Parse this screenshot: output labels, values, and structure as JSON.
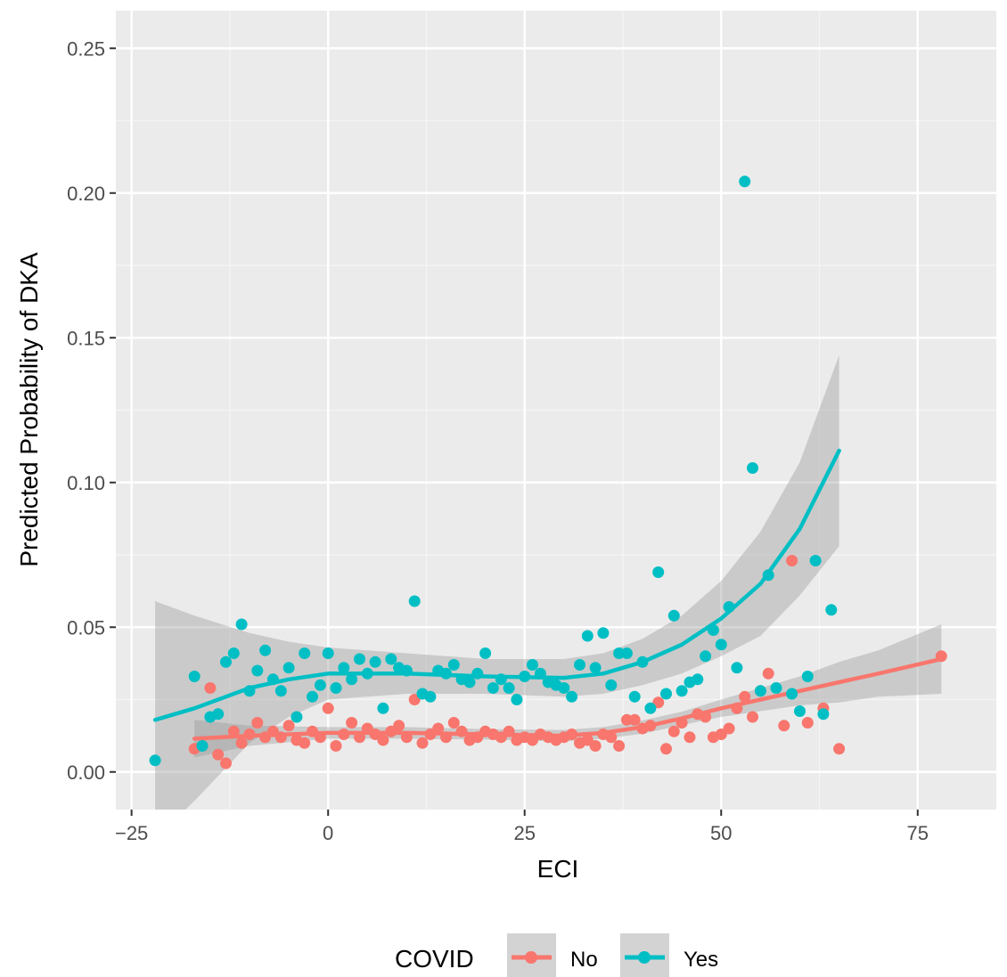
{
  "chart_data": {
    "type": "scatter",
    "title": "",
    "xlabel": "ECI",
    "ylabel": "Predicted Probability of DKA",
    "xlim": [
      -27,
      85
    ],
    "ylim": [
      -0.013,
      0.263
    ],
    "x_ticks": [
      -25,
      0,
      25,
      50,
      75
    ],
    "x_tick_labels": [
      "−25",
      "0",
      "25",
      "50",
      "75"
    ],
    "y_ticks": [
      0.0,
      0.05,
      0.1,
      0.15,
      0.2,
      0.25
    ],
    "y_tick_labels": [
      "0.00",
      "0.05",
      "0.10",
      "0.15",
      "0.20",
      "0.25"
    ],
    "grid": true,
    "legend": {
      "title": "COVID",
      "position": "bottom"
    },
    "series": [
      {
        "name": "No",
        "color": "#F8766D",
        "points": [
          [
            -17,
            0.008
          ],
          [
            -16,
            0.009
          ],
          [
            -15,
            0.029
          ],
          [
            -14,
            0.006
          ],
          [
            -13,
            0.003
          ],
          [
            -12,
            0.014
          ],
          [
            -11,
            0.01
          ],
          [
            -10,
            0.013
          ],
          [
            -9,
            0.017
          ],
          [
            -8,
            0.012
          ],
          [
            -7,
            0.014
          ],
          [
            -6,
            0.012
          ],
          [
            -5,
            0.016
          ],
          [
            -4,
            0.011
          ],
          [
            -3,
            0.01
          ],
          [
            -2,
            0.014
          ],
          [
            -1,
            0.012
          ],
          [
            0,
            0.022
          ],
          [
            1,
            0.009
          ],
          [
            2,
            0.013
          ],
          [
            3,
            0.017
          ],
          [
            4,
            0.012
          ],
          [
            5,
            0.015
          ],
          [
            6,
            0.013
          ],
          [
            7,
            0.011
          ],
          [
            8,
            0.014
          ],
          [
            9,
            0.016
          ],
          [
            10,
            0.012
          ],
          [
            11,
            0.025
          ],
          [
            12,
            0.01
          ],
          [
            13,
            0.013
          ],
          [
            14,
            0.015
          ],
          [
            15,
            0.012
          ],
          [
            16,
            0.017
          ],
          [
            17,
            0.014
          ],
          [
            18,
            0.011
          ],
          [
            19,
            0.012
          ],
          [
            20,
            0.014
          ],
          [
            21,
            0.013
          ],
          [
            22,
            0.012
          ],
          [
            23,
            0.014
          ],
          [
            24,
            0.011
          ],
          [
            25,
            0.012
          ],
          [
            26,
            0.011
          ],
          [
            27,
            0.013
          ],
          [
            28,
            0.012
          ],
          [
            29,
            0.011
          ],
          [
            30,
            0.012
          ],
          [
            31,
            0.013
          ],
          [
            32,
            0.01
          ],
          [
            33,
            0.011
          ],
          [
            34,
            0.009
          ],
          [
            35,
            0.013
          ],
          [
            36,
            0.012
          ],
          [
            37,
            0.009
          ],
          [
            38,
            0.018
          ],
          [
            39,
            0.018
          ],
          [
            40,
            0.015
          ],
          [
            41,
            0.016
          ],
          [
            42,
            0.024
          ],
          [
            43,
            0.008
          ],
          [
            44,
            0.014
          ],
          [
            45,
            0.017
          ],
          [
            46,
            0.012
          ],
          [
            47,
            0.02
          ],
          [
            48,
            0.019
          ],
          [
            49,
            0.012
          ],
          [
            50,
            0.013
          ],
          [
            51,
            0.015
          ],
          [
            52,
            0.022
          ],
          [
            53,
            0.026
          ],
          [
            54,
            0.019
          ],
          [
            55,
            0.028
          ],
          [
            56,
            0.034
          ],
          [
            58,
            0.016
          ],
          [
            59,
            0.073
          ],
          [
            61,
            0.017
          ],
          [
            63,
            0.022
          ],
          [
            65,
            0.008
          ],
          [
            78,
            0.04
          ]
        ],
        "smooth": [
          [
            -17,
            0.0115
          ],
          [
            -10,
            0.0125
          ],
          [
            0,
            0.0135
          ],
          [
            10,
            0.0135
          ],
          [
            20,
            0.013
          ],
          [
            30,
            0.0125
          ],
          [
            35,
            0.0135
          ],
          [
            40,
            0.0155
          ],
          [
            45,
            0.0185
          ],
          [
            50,
            0.022
          ],
          [
            55,
            0.025
          ],
          [
            60,
            0.028
          ],
          [
            65,
            0.031
          ],
          [
            70,
            0.034
          ],
          [
            78,
            0.039
          ]
        ],
        "band_upper": [
          [
            -17,
            0.018
          ],
          [
            -10,
            0.016
          ],
          [
            0,
            0.0155
          ],
          [
            10,
            0.0155
          ],
          [
            20,
            0.0148
          ],
          [
            30,
            0.0145
          ],
          [
            35,
            0.0155
          ],
          [
            40,
            0.0178
          ],
          [
            45,
            0.0208
          ],
          [
            50,
            0.025
          ],
          [
            55,
            0.029
          ],
          [
            60,
            0.033
          ],
          [
            65,
            0.038
          ],
          [
            70,
            0.042
          ],
          [
            78,
            0.051
          ]
        ],
        "band_lower": [
          [
            -17,
            0.005
          ],
          [
            -10,
            0.009
          ],
          [
            0,
            0.0115
          ],
          [
            10,
            0.0115
          ],
          [
            20,
            0.0112
          ],
          [
            30,
            0.0105
          ],
          [
            35,
            0.0115
          ],
          [
            40,
            0.0132
          ],
          [
            45,
            0.0162
          ],
          [
            50,
            0.019
          ],
          [
            55,
            0.021
          ],
          [
            60,
            0.023
          ],
          [
            65,
            0.024
          ],
          [
            70,
            0.026
          ],
          [
            78,
            0.027
          ]
        ]
      },
      {
        "name": "Yes",
        "color": "#00BFC4",
        "points": [
          [
            -22,
            0.004
          ],
          [
            -17,
            0.033
          ],
          [
            -16,
            0.009
          ],
          [
            -15,
            0.019
          ],
          [
            -14,
            0.02
          ],
          [
            -13,
            0.038
          ],
          [
            -12,
            0.041
          ],
          [
            -11,
            0.051
          ],
          [
            -10,
            0.028
          ],
          [
            -9,
            0.035
          ],
          [
            -8,
            0.042
          ],
          [
            -7,
            0.032
          ],
          [
            -6,
            0.028
          ],
          [
            -5,
            0.036
          ],
          [
            -4,
            0.019
          ],
          [
            -3,
            0.041
          ],
          [
            -2,
            0.026
          ],
          [
            -1,
            0.03
          ],
          [
            0,
            0.041
          ],
          [
            1,
            0.029
          ],
          [
            2,
            0.036
          ],
          [
            3,
            0.032
          ],
          [
            4,
            0.039
          ],
          [
            5,
            0.034
          ],
          [
            6,
            0.038
          ],
          [
            7,
            0.022
          ],
          [
            8,
            0.039
          ],
          [
            9,
            0.036
          ],
          [
            10,
            0.035
          ],
          [
            11,
            0.059
          ],
          [
            12,
            0.027
          ],
          [
            13,
            0.026
          ],
          [
            14,
            0.035
          ],
          [
            15,
            0.034
          ],
          [
            16,
            0.037
          ],
          [
            17,
            0.032
          ],
          [
            18,
            0.031
          ],
          [
            19,
            0.034
          ],
          [
            20,
            0.041
          ],
          [
            21,
            0.029
          ],
          [
            22,
            0.032
          ],
          [
            23,
            0.029
          ],
          [
            24,
            0.025
          ],
          [
            25,
            0.033
          ],
          [
            26,
            0.037
          ],
          [
            27,
            0.034
          ],
          [
            28,
            0.031
          ],
          [
            29,
            0.03
          ],
          [
            30,
            0.029
          ],
          [
            31,
            0.026
          ],
          [
            32,
            0.037
          ],
          [
            33,
            0.047
          ],
          [
            34,
            0.036
          ],
          [
            35,
            0.048
          ],
          [
            36,
            0.03
          ],
          [
            37,
            0.041
          ],
          [
            38,
            0.041
          ],
          [
            39,
            0.026
          ],
          [
            40,
            0.038
          ],
          [
            41,
            0.022
          ],
          [
            42,
            0.069
          ],
          [
            43,
            0.027
          ],
          [
            44,
            0.054
          ],
          [
            45,
            0.028
          ],
          [
            46,
            0.031
          ],
          [
            47,
            0.032
          ],
          [
            48,
            0.04
          ],
          [
            49,
            0.049
          ],
          [
            50,
            0.044
          ],
          [
            51,
            0.057
          ],
          [
            52,
            0.036
          ],
          [
            53,
            0.204
          ],
          [
            54,
            0.105
          ],
          [
            55,
            0.028
          ],
          [
            56,
            0.068
          ],
          [
            57,
            0.029
          ],
          [
            59,
            0.027
          ],
          [
            60,
            0.021
          ],
          [
            61,
            0.033
          ],
          [
            62,
            0.073
          ],
          [
            63,
            0.02
          ],
          [
            64,
            0.056
          ]
        ],
        "smooth": [
          [
            -22,
            0.018
          ],
          [
            -17,
            0.022
          ],
          [
            -10,
            0.029
          ],
          [
            -5,
            0.032
          ],
          [
            0,
            0.034
          ],
          [
            10,
            0.034
          ],
          [
            20,
            0.033
          ],
          [
            30,
            0.0325
          ],
          [
            35,
            0.034
          ],
          [
            40,
            0.038
          ],
          [
            45,
            0.044
          ],
          [
            50,
            0.053
          ],
          [
            55,
            0.065
          ],
          [
            60,
            0.084
          ],
          [
            65,
            0.111
          ]
        ],
        "band_upper": [
          [
            -22,
            0.059
          ],
          [
            -17,
            0.054
          ],
          [
            -10,
            0.048
          ],
          [
            -5,
            0.045
          ],
          [
            0,
            0.043
          ],
          [
            10,
            0.041
          ],
          [
            20,
            0.039
          ],
          [
            30,
            0.039
          ],
          [
            35,
            0.041
          ],
          [
            40,
            0.046
          ],
          [
            45,
            0.054
          ],
          [
            50,
            0.066
          ],
          [
            55,
            0.083
          ],
          [
            60,
            0.107
          ],
          [
            65,
            0.144
          ]
        ],
        "band_lower": [
          [
            -22,
            -0.023
          ],
          [
            -17,
            -0.01
          ],
          [
            -10,
            0.01
          ],
          [
            -5,
            0.019
          ],
          [
            0,
            0.025
          ],
          [
            10,
            0.027
          ],
          [
            20,
            0.027
          ],
          [
            30,
            0.026
          ],
          [
            35,
            0.027
          ],
          [
            40,
            0.03
          ],
          [
            45,
            0.034
          ],
          [
            50,
            0.04
          ],
          [
            55,
            0.047
          ],
          [
            60,
            0.061
          ],
          [
            65,
            0.078
          ]
        ]
      }
    ]
  }
}
